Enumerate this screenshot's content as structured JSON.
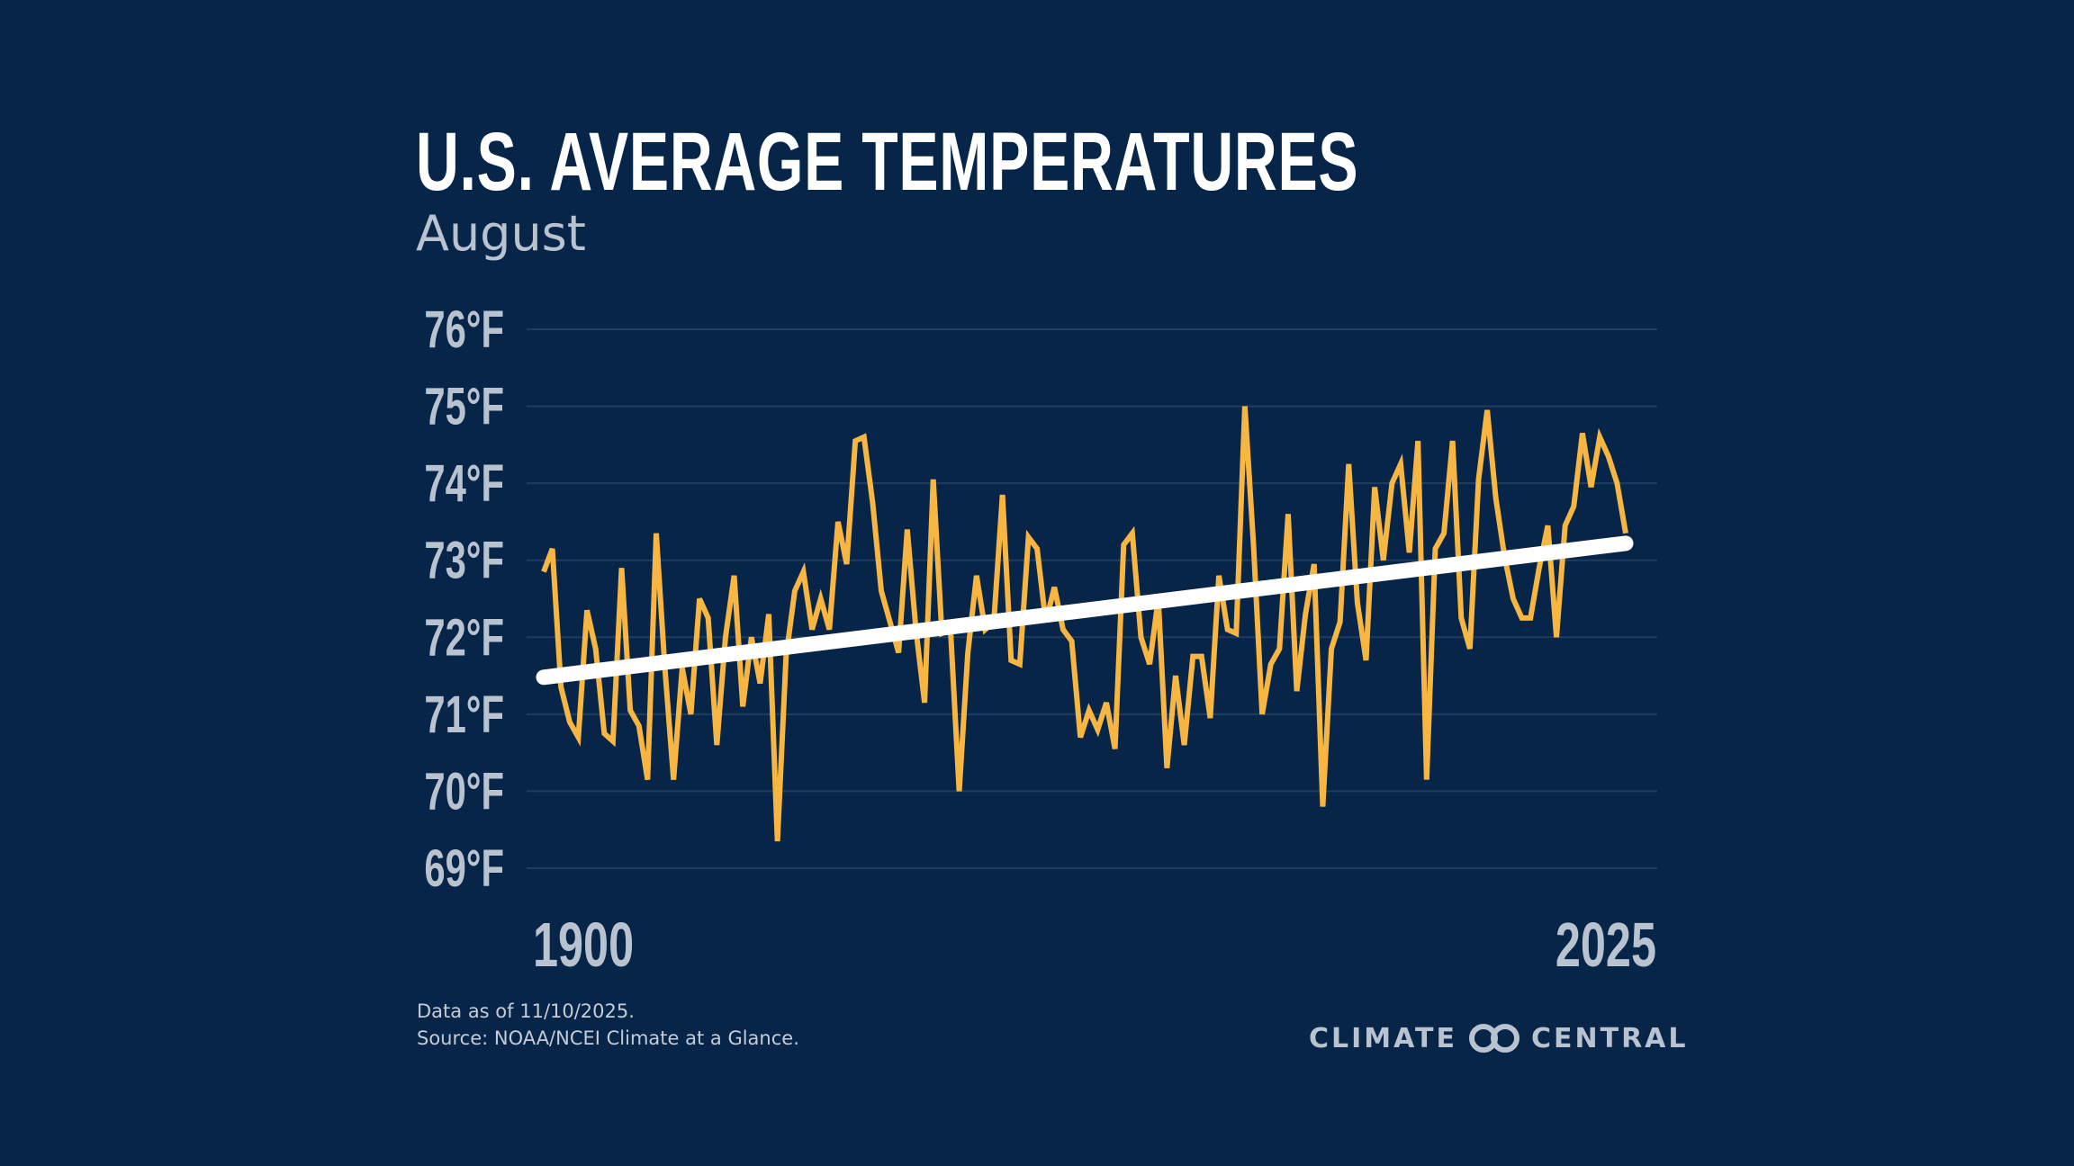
{
  "header": {
    "title": "U.S. AVERAGE TEMPERATURES",
    "subtitle": "August"
  },
  "footer": {
    "data_note": "Data as of 11/10/2025.",
    "source": "Source: NOAA/NCEI Climate at a Glance."
  },
  "logo": {
    "left": "CLIMATE",
    "right": "CENTRAL"
  },
  "colors": {
    "background": "#062549",
    "series": "#f7b541",
    "trend": "#ffffff",
    "grid": "#1f3d61",
    "axis_text": "#b9c3cf"
  },
  "chart_data": {
    "type": "line",
    "title": "U.S. AVERAGE TEMPERATURES",
    "subtitle": "August",
    "xlim": [
      1900,
      2025
    ],
    "ylim": [
      69,
      76
    ],
    "x_tick_labels": [
      "1900",
      "2025"
    ],
    "y_ticks": [
      76,
      75,
      74,
      73,
      72,
      71,
      70,
      69
    ],
    "y_tick_labels": [
      "76°F",
      "75°F",
      "74°F",
      "73°F",
      "72°F",
      "71°F",
      "70°F",
      "69°F"
    ],
    "grid": true,
    "x_start": 1900,
    "series": [
      {
        "values": [
          72.85,
          73.15,
          71.35,
          70.9,
          70.7,
          72.35,
          71.85,
          70.75,
          70.65,
          72.9,
          71.05,
          70.85,
          70.15,
          73.35,
          71.6,
          70.15,
          71.6,
          71.0,
          72.5,
          72.25,
          70.6,
          72.0,
          72.8,
          71.1,
          72.0,
          71.4,
          72.3,
          69.35,
          71.75,
          72.6,
          72.85,
          72.1,
          72.5,
          72.1,
          73.5,
          72.95,
          74.55,
          74.6,
          73.75,
          72.6,
          72.2,
          71.8,
          73.4,
          72.1,
          71.15,
          74.05,
          72.05,
          72.1,
          70.0,
          71.8,
          72.8,
          72.1,
          72.2,
          73.85,
          71.7,
          71.65,
          73.3,
          73.15,
          72.2,
          72.65,
          72.1,
          71.95,
          70.7,
          71.05,
          70.8,
          71.15,
          70.55,
          73.2,
          73.35,
          72.0,
          71.65,
          72.5,
          70.3,
          71.5,
          70.6,
          71.75,
          71.75,
          70.95,
          72.8,
          72.1,
          72.05,
          75.0,
          73.2,
          71.0,
          71.65,
          71.85,
          73.6,
          71.3,
          72.3,
          72.95,
          69.8,
          71.85,
          72.2,
          74.25,
          72.45,
          71.7,
          73.95,
          73.0,
          74.0,
          74.25,
          73.1,
          74.55,
          70.15,
          73.15,
          73.35,
          74.55,
          72.25,
          71.85,
          74.05,
          74.95,
          73.8,
          73.05,
          72.5,
          72.25,
          72.25,
          72.9,
          73.45,
          72.0,
          73.45,
          73.7,
          74.65,
          73.95,
          74.6,
          74.35,
          74.0,
          73.35
        ]
      }
    ],
    "trend": {
      "start": [
        1900,
        71.48
      ],
      "end": [
        2025,
        73.22
      ]
    }
  }
}
